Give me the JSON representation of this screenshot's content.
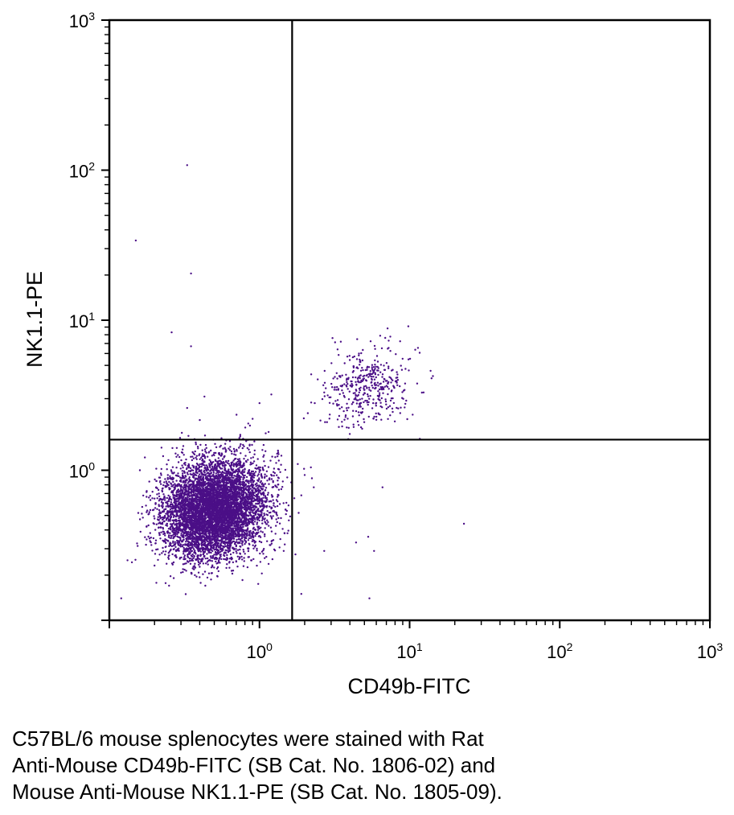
{
  "chart_data": {
    "type": "scatter",
    "title": "",
    "xlabel": "CD49b-FITC",
    "ylabel": "NK1.1-PE",
    "x_scale": "log",
    "y_scale": "log",
    "xlim": [
      0.1,
      1000
    ],
    "ylim": [
      0.1,
      1000
    ],
    "x_ticks": [
      {
        "base": "10",
        "exp": "0",
        "value": 1
      },
      {
        "base": "10",
        "exp": "1",
        "value": 10
      },
      {
        "base": "10",
        "exp": "2",
        "value": 100
      },
      {
        "base": "10",
        "exp": "3",
        "value": 1000
      }
    ],
    "y_ticks": [
      {
        "base": "10",
        "exp": "0",
        "value": 1
      },
      {
        "base": "10",
        "exp": "1",
        "value": 10
      },
      {
        "base": "10",
        "exp": "2",
        "value": 100
      },
      {
        "base": "10",
        "exp": "3",
        "value": 1000
      }
    ],
    "quadrant_gates": {
      "x": 1.65,
      "y": 1.6
    },
    "grid": false,
    "point_color": "#4B0F87",
    "populations": [
      {
        "center": [
          0.5,
          0.55
        ],
        "spread_log10": [
          0.17,
          0.16
        ],
        "approx_events": 6500
      },
      {
        "center": [
          5.2,
          3.6
        ],
        "spread_log10": [
          0.14,
          0.13
        ],
        "approx_events": 420
      }
    ],
    "outlier_points": [
      [
        0.33,
        108
      ],
      [
        0.15,
        34
      ],
      [
        0.35,
        20.5
      ],
      [
        0.26,
        8.3
      ],
      [
        0.35,
        6.7
      ],
      [
        9.8,
        9.1
      ],
      [
        0.33,
        2.6
      ],
      [
        0.43,
        3.1
      ],
      [
        23,
        0.44
      ],
      [
        6.6,
        0.77
      ],
      [
        5.3,
        0.36
      ],
      [
        4.4,
        0.33
      ],
      [
        5.8,
        0.29
      ],
      [
        2.7,
        0.29
      ],
      [
        5.4,
        0.14
      ],
      [
        1.9,
        0.15
      ],
      [
        13.8,
        4.6
      ],
      [
        12.4,
        3.3
      ],
      [
        11.7,
        1.62
      ],
      [
        2.3,
        0.77
      ],
      [
        2.0,
        0.93
      ],
      [
        1.0,
        2.8
      ],
      [
        1.2,
        3.2
      ],
      [
        2.1,
        2.4
      ],
      [
        14.0,
        4.1
      ],
      [
        1.15,
        1.8
      ],
      [
        0.9,
        2.2
      ],
      [
        2.7,
        3.3
      ],
      [
        3.3,
        2.7
      ],
      [
        1.4,
        1.25
      ],
      [
        1.8,
        1.1
      ],
      [
        0.6,
        1.35
      ],
      [
        1.1,
        0.65
      ],
      [
        1.9,
        0.68
      ],
      [
        0.25,
        0.17
      ],
      [
        0.12,
        0.14
      ]
    ]
  },
  "caption": {
    "lines": [
      "C57BL/6 mouse splenocytes were stained with Rat",
      "Anti-Mouse CD49b-FITC (SB Cat. No. 1806-02) and",
      "Mouse Anti-Mouse NK1.1-PE (SB Cat. No. 1805-09)."
    ]
  }
}
